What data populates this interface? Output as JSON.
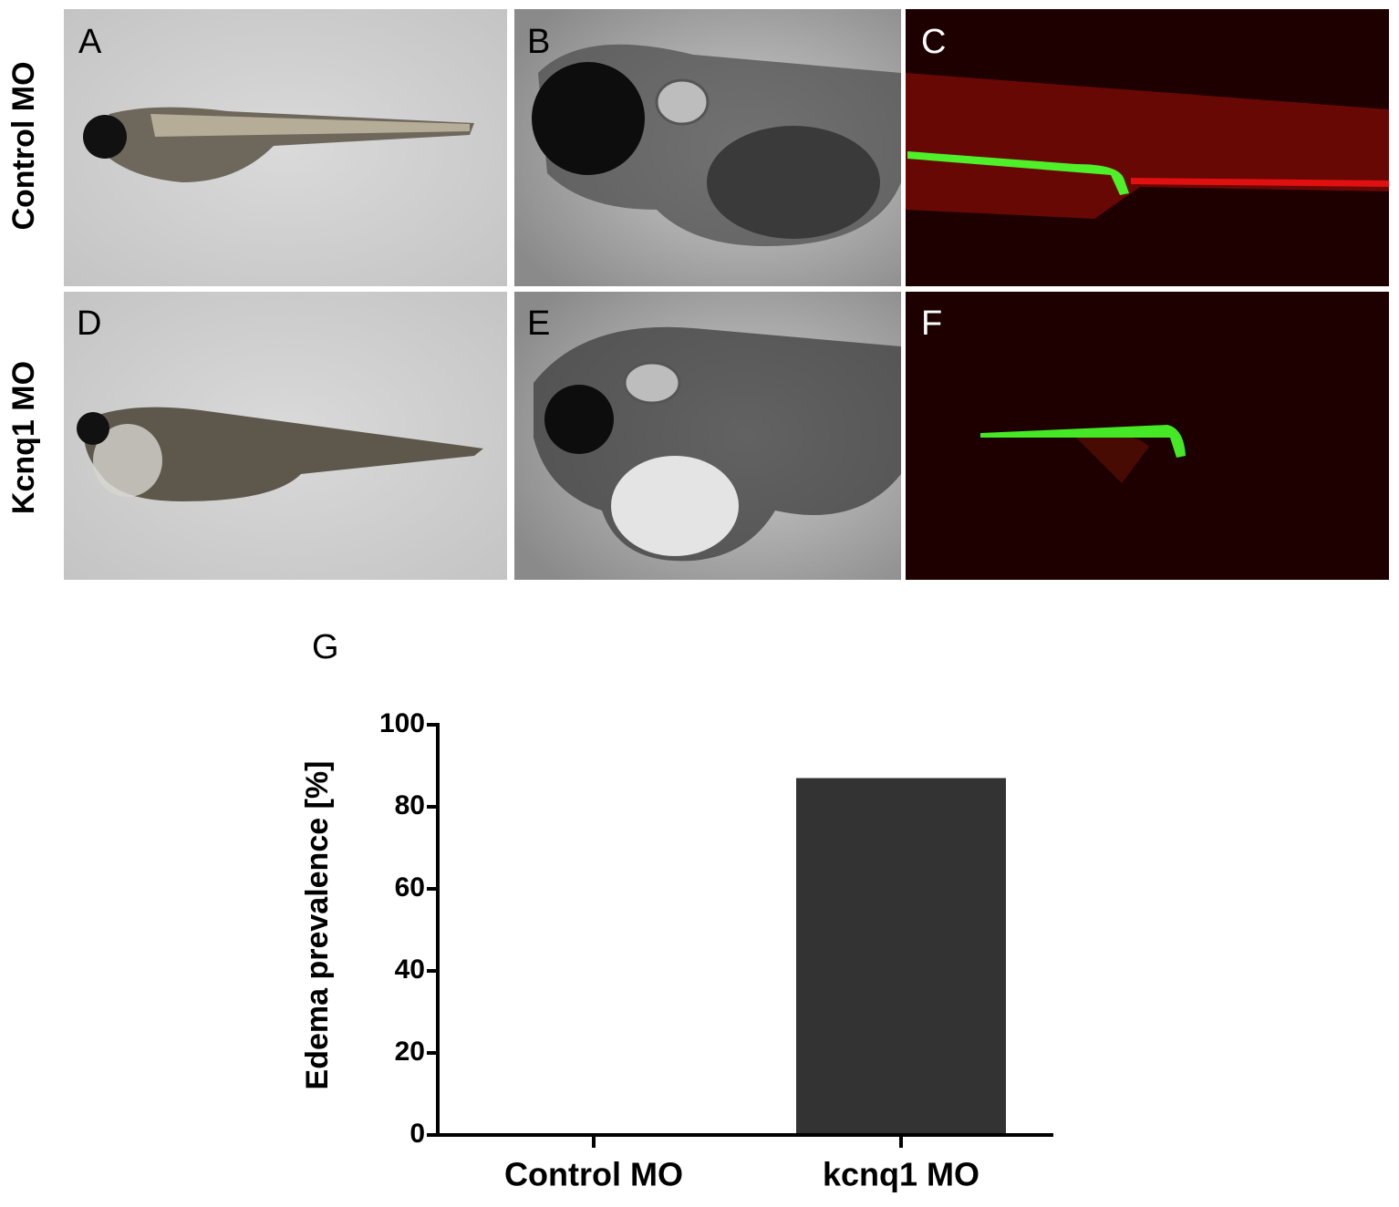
{
  "panels": [
    {
      "label": "A"
    },
    {
      "label": "B"
    },
    {
      "label": "C"
    },
    {
      "label": "D"
    },
    {
      "label": "E"
    },
    {
      "label": "F"
    }
  ],
  "rows": [
    "Control MO",
    "Kcnq1 MO"
  ],
  "chart_label": "G",
  "chart_data": {
    "type": "bar",
    "y_label": "Edema prevalence [%]",
    "categories": [
      "Control MO",
      "kcnq1 MO"
    ],
    "values": [
      0,
      87
    ],
    "color": "#333333",
    "ylim": [
      0,
      100
    ],
    "yticks": [
      0,
      20,
      40,
      60,
      80,
      100
    ]
  }
}
